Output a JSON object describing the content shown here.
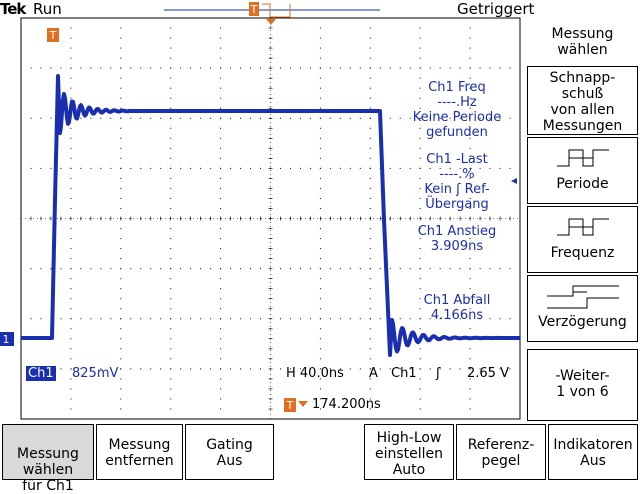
{
  "header": {
    "brand": "Tek",
    "state": "Run",
    "trigger_state": "Getriggert",
    "trigger_marker": "T"
  },
  "screen": {
    "ground_marker": "1",
    "trigger_marker_left": "T",
    "measurements": [
      {
        "lines": [
          "Ch1 Freq",
          "----.Hz",
          "Keine Periode",
          "gefunden"
        ]
      },
      {
        "lines": [
          "Ch1 -Last",
          "----.%",
          "Kein ʃ Ref-",
          "Übergang"
        ]
      },
      {
        "lines": [
          "Ch1 Anstieg",
          "3.909ns"
        ]
      },
      {
        "lines": [
          "Ch1 Abfall",
          "4.166ns"
        ]
      }
    ],
    "status": {
      "channel": "Ch1",
      "volts_div": "825mV",
      "timebase": "H 40.0ns",
      "acq": "A",
      "trig_source": "Ch1",
      "trig_slope": "ʃ",
      "trig_level": "2.65 V",
      "trigger_position": "174.200ns"
    }
  },
  "side_menu": {
    "title": "Messung\nwählen",
    "buttons": [
      {
        "label": "Schnapp-\nschuß\nvon allen\nMessungen",
        "icon": ""
      },
      {
        "label": "Periode",
        "icon": "period-icon"
      },
      {
        "label": "Frequenz",
        "icon": "frequency-icon"
      },
      {
        "label": "Verzögerung",
        "icon": "delay-icon"
      },
      {
        "label": "-Weiter-\n1 von 6",
        "icon": ""
      }
    ]
  },
  "bottom_menu": [
    {
      "label": "Messung\nwählen\nfür Ch1",
      "selected": true
    },
    {
      "label": "Messung\nentfernen",
      "selected": false
    },
    {
      "label": "Gating\nAus",
      "selected": false
    },
    {
      "label": "High-Low\neinstellen\nAuto",
      "selected": false
    },
    {
      "label": "Referenz-\npegel",
      "selected": false
    },
    {
      "label": "Indikatoren\nAus",
      "selected": false
    }
  ],
  "colors": {
    "trace": "#1a2fb0",
    "marker": "#e07020",
    "ground_marker_bg": "#1a2fb0"
  }
}
